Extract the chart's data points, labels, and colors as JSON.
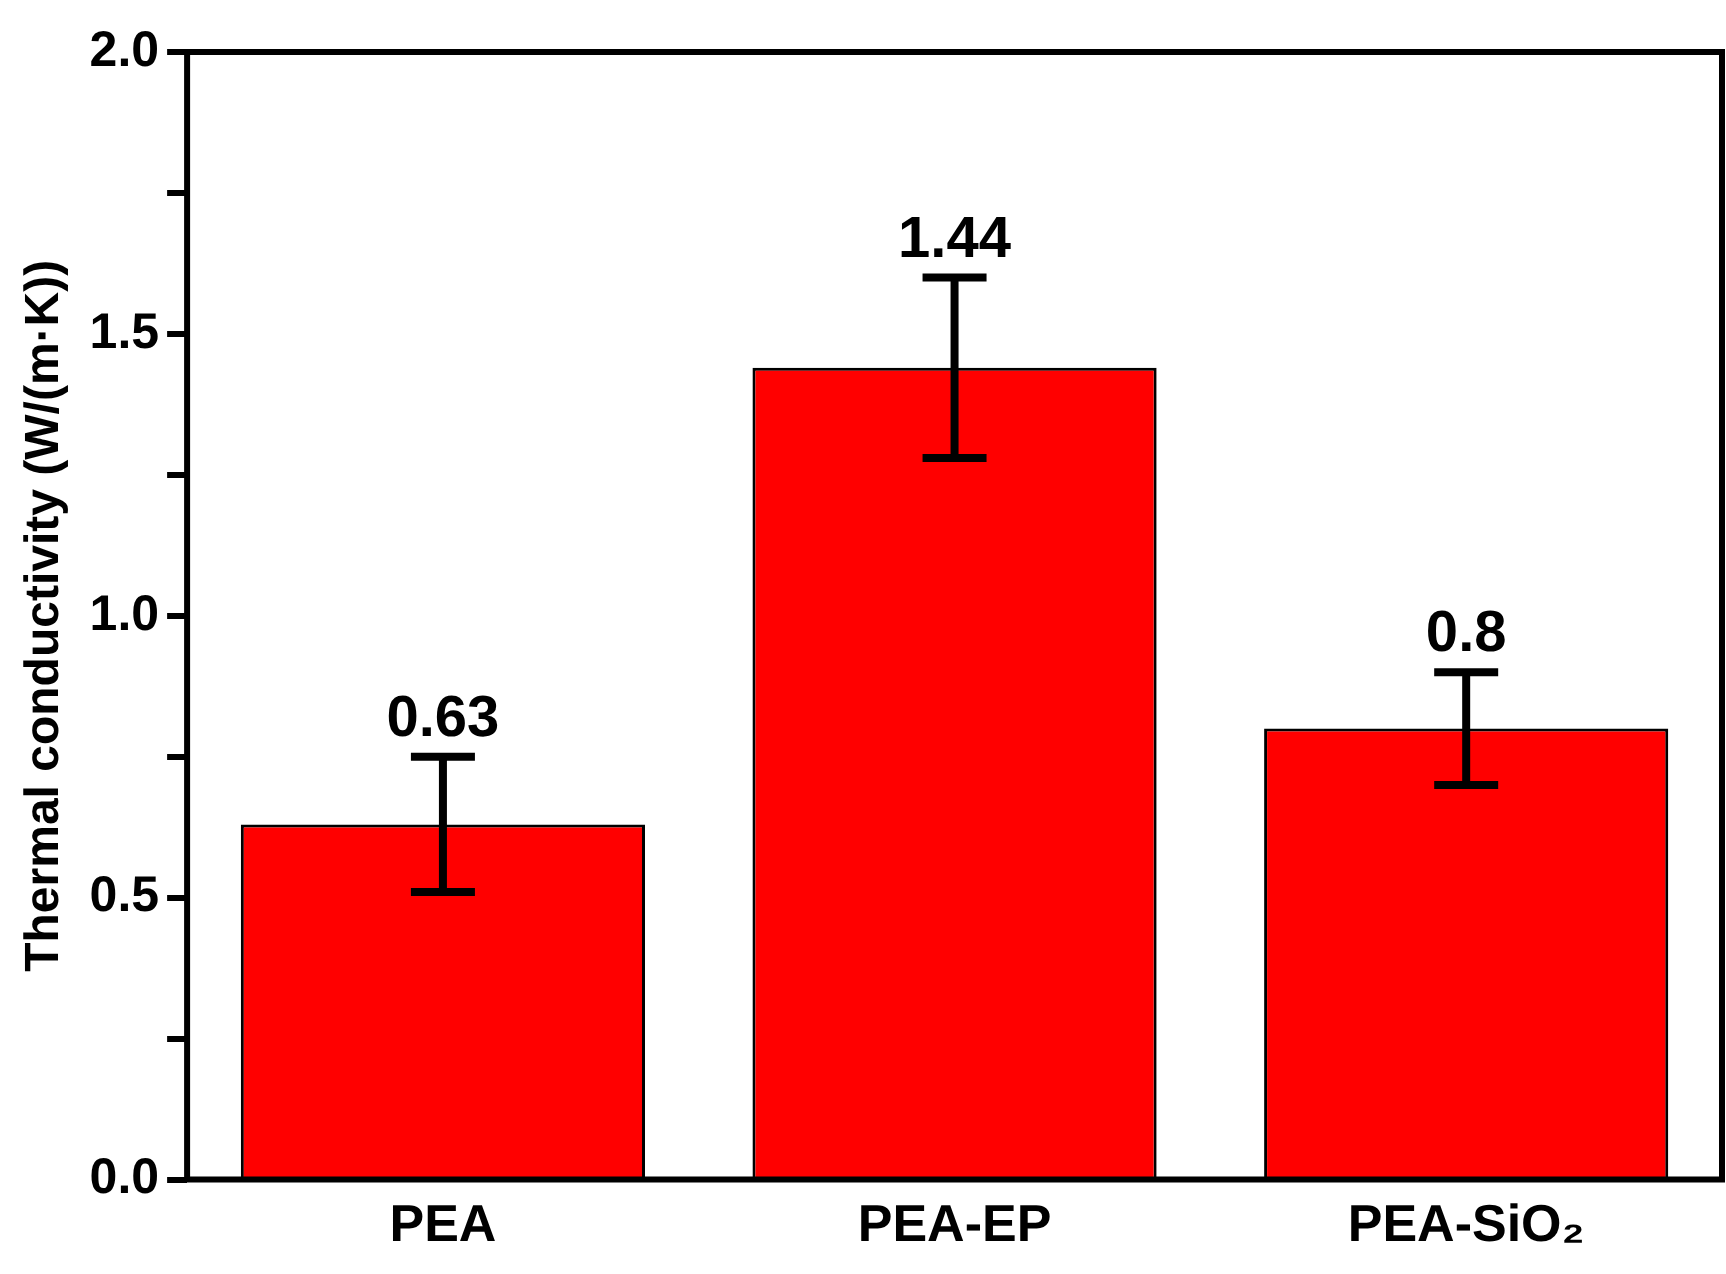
{
  "chart_data": {
    "type": "bar",
    "ylabel": "Thermal conductivity (W/(m·K))",
    "categories": [
      "PEA",
      "PEA-EP",
      "PEA-SiO₂"
    ],
    "values": [
      0.63,
      1.44,
      0.8
    ],
    "color": "#ff0000",
    "errors": [
      [
        0.51,
        0.75
      ],
      [
        1.28,
        1.6
      ],
      [
        0.7,
        0.9
      ]
    ],
    "data_labels": true,
    "grid": false,
    "legend": false,
    "ylim": [
      0,
      2.0
    ],
    "yticks": [
      {
        "value": 0,
        "label": "0.0"
      },
      {
        "value": 0.25,
        "label": null
      },
      {
        "value": 0.5,
        "label": "0.5"
      },
      {
        "value": 0.75,
        "label": null
      },
      {
        "value": 1,
        "label": "1.0"
      },
      {
        "value": 1.25,
        "label": null
      },
      {
        "value": 1.5,
        "label": "1.5"
      },
      {
        "value": 1.75,
        "label": null
      },
      {
        "value": 2,
        "label": "2.0"
      }
    ]
  }
}
